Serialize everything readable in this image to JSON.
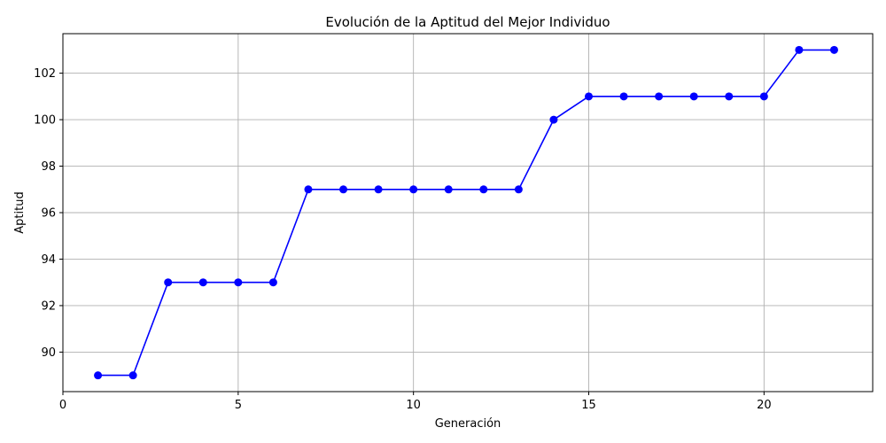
{
  "chart_data": {
    "type": "line",
    "title": "Evolución de la Aptitud del Mejor Individuo",
    "xlabel": "Generación",
    "ylabel": "Aptitud",
    "xlim": [
      0,
      23.1
    ],
    "ylim": [
      88.3,
      103.7
    ],
    "x_ticks": [
      0,
      5,
      10,
      15,
      20
    ],
    "y_ticks": [
      90,
      92,
      94,
      96,
      98,
      100,
      102
    ],
    "grid": true,
    "series": [
      {
        "color": "#0000ff",
        "marker": "circle",
        "x": [
          1,
          2,
          3,
          4,
          5,
          6,
          7,
          8,
          9,
          10,
          11,
          12,
          13,
          14,
          15,
          16,
          17,
          18,
          19,
          20,
          21,
          22
        ],
        "y": [
          89,
          89,
          93,
          93,
          93,
          93,
          97,
          97,
          97,
          97,
          97,
          97,
          97,
          100,
          101,
          101,
          101,
          101,
          101,
          101,
          103,
          103
        ]
      }
    ]
  }
}
